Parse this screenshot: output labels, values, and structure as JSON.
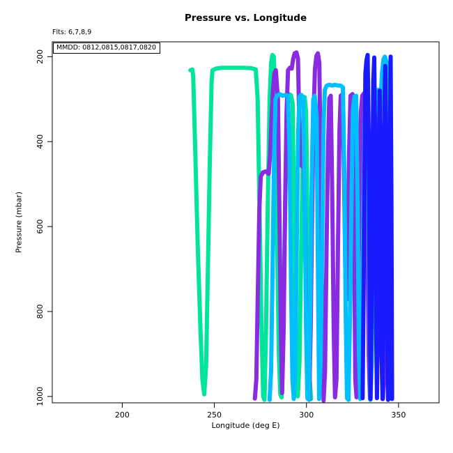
{
  "page": {
    "background": "#ffffff"
  },
  "chart_data": {
    "type": "line",
    "title": "Pressure vs. Longitude",
    "subtitle": "Flts: 6,7,8,9",
    "legend_box_text": "MMDD: 0812,0815,0817,0820",
    "xlabel": "Longitude (deg E)",
    "ylabel": "Pressure (mbar)",
    "xlim": [
      162,
      372
    ],
    "ylim_top": 165,
    "ylim_bottom": 1015,
    "y_axis_reversed": true,
    "x_ticks": [
      200,
      250,
      300,
      350
    ],
    "y_ticks": [
      200,
      400,
      600,
      800,
      1000
    ],
    "grid": false,
    "legend_position": "topleft",
    "axis_color": "#000000",
    "series": [
      {
        "name": "flight-6-mmdd-0812",
        "color": "#00E59B",
        "points": [
          [
            237,
            232
          ],
          [
            238,
            230
          ],
          [
            238.5,
            245
          ],
          [
            239.5,
            400
          ],
          [
            241,
            650
          ],
          [
            242.5,
            850
          ],
          [
            243.5,
            960
          ],
          [
            244.5,
            995
          ],
          [
            245.5,
            930
          ],
          [
            246.5,
            700
          ],
          [
            247.5,
            450
          ],
          [
            248.5,
            260
          ],
          [
            249,
            232
          ],
          [
            251,
            228
          ],
          [
            254,
            226
          ],
          [
            258,
            226
          ],
          [
            262,
            226
          ],
          [
            266,
            226
          ],
          [
            270,
            227
          ],
          [
            272.5,
            230
          ],
          [
            273.5,
            300
          ],
          [
            274.5,
            550
          ],
          [
            275.5,
            820
          ],
          [
            276.5,
            1000
          ],
          [
            277.2,
            1008
          ],
          [
            278,
            850
          ],
          [
            279,
            550
          ],
          [
            280,
            300
          ],
          [
            280.8,
            215
          ],
          [
            281.5,
            196
          ],
          [
            282.3,
            200
          ],
          [
            283,
            300
          ],
          [
            284,
            620
          ],
          [
            285,
            900
          ],
          [
            285.8,
            995
          ],
          [
            286.5,
            1002
          ],
          [
            287.5,
            820
          ],
          [
            288.5,
            520
          ],
          [
            289.5,
            310
          ],
          [
            290.3,
            288
          ],
          [
            291.5,
            290
          ],
          [
            292.5,
            310
          ],
          [
            293.5,
            620
          ],
          [
            294.5,
            930
          ],
          [
            295.3,
            1000
          ],
          [
            296.2,
            920
          ],
          [
            297.2,
            640
          ],
          [
            298.2,
            380
          ],
          [
            299,
            295
          ],
          [
            299.8,
            330
          ],
          [
            300.8,
            650
          ],
          [
            301.8,
            960
          ],
          [
            302.5,
            1006
          ]
        ]
      },
      {
        "name": "flight-7-mmdd-0815",
        "color": "#8A2BE2",
        "points": [
          [
            272,
            1005
          ],
          [
            272.8,
            960
          ],
          [
            273.6,
            760
          ],
          [
            274.4,
            560
          ],
          [
            275.2,
            482
          ],
          [
            276.5,
            472
          ],
          [
            278,
            470
          ],
          [
            279.5,
            476
          ],
          [
            280.3,
            430
          ],
          [
            281,
            350
          ],
          [
            281.8,
            280
          ],
          [
            282.6,
            240
          ],
          [
            283.4,
            232
          ],
          [
            284.5,
            300
          ],
          [
            285.3,
            560
          ],
          [
            286.1,
            840
          ],
          [
            286.8,
            992
          ],
          [
            287.6,
            850
          ],
          [
            288.4,
            560
          ],
          [
            289.2,
            330
          ],
          [
            290,
            232
          ],
          [
            291,
            226
          ],
          [
            292,
            228
          ],
          [
            292.8,
            205
          ],
          [
            293.6,
            192
          ],
          [
            294.6,
            190
          ],
          [
            295.4,
            205
          ],
          [
            296,
            330
          ],
          [
            296.6,
            452
          ],
          [
            297.6,
            458
          ],
          [
            298.6,
            452
          ],
          [
            299.3,
            600
          ],
          [
            300,
            860
          ],
          [
            300.7,
            1002
          ],
          [
            301.5,
            1008
          ],
          [
            302.3,
            840
          ],
          [
            303.1,
            560
          ],
          [
            303.9,
            330
          ],
          [
            304.6,
            230
          ],
          [
            305.4,
            198
          ],
          [
            306.2,
            192
          ],
          [
            307,
            215
          ],
          [
            307.8,
            480
          ],
          [
            308.6,
            820
          ],
          [
            309.3,
            1010
          ],
          [
            310.1,
            940
          ],
          [
            310.9,
            660
          ],
          [
            311.7,
            420
          ],
          [
            312.4,
            298
          ],
          [
            313.2,
            292
          ],
          [
            314,
            520
          ],
          [
            314.8,
            840
          ],
          [
            315.5,
            1002
          ],
          [
            316.3,
            960
          ],
          [
            317.1,
            660
          ],
          [
            317.9,
            380
          ],
          [
            318.6,
            292
          ],
          [
            319.6,
            288
          ],
          [
            320.4,
            480
          ],
          [
            321.1,
            700
          ],
          [
            321.8,
            772
          ],
          [
            322.5,
            640
          ],
          [
            323.2,
            420
          ],
          [
            323.9,
            292
          ],
          [
            325,
            288
          ],
          [
            325.8,
            560
          ],
          [
            326.5,
            960
          ],
          [
            327.2,
            1002
          ],
          [
            328,
            820
          ],
          [
            328.8,
            540
          ],
          [
            329.6,
            330
          ],
          [
            330.3,
            292
          ],
          [
            331.3,
            286
          ],
          [
            332.2,
            292
          ],
          [
            333,
            560
          ],
          [
            333.8,
            900
          ],
          [
            334.5,
            1006
          ],
          [
            335.3,
            920
          ],
          [
            336.1,
            640
          ],
          [
            336.9,
            420
          ],
          [
            337.6,
            295
          ],
          [
            338.5,
            288
          ],
          [
            339.3,
            330
          ],
          [
            340,
            620
          ],
          [
            340.8,
            900
          ],
          [
            341.5,
            1006
          ],
          [
            342.3,
            940
          ],
          [
            343.1,
            680
          ],
          [
            343.9,
            430
          ],
          [
            344.6,
            310
          ]
        ]
      },
      {
        "name": "flight-8-mmdd-0817",
        "color": "#00BFFF",
        "points": [
          [
            280,
            1008
          ],
          [
            280.8,
            940
          ],
          [
            281.6,
            700
          ],
          [
            282.4,
            440
          ],
          [
            283.2,
            300
          ],
          [
            284,
            292
          ],
          [
            285.5,
            288
          ],
          [
            287,
            292
          ],
          [
            288.5,
            290
          ],
          [
            290,
            292
          ],
          [
            290.8,
            420
          ],
          [
            291.6,
            720
          ],
          [
            292.4,
            960
          ],
          [
            293.1,
            1006
          ],
          [
            293.9,
            940
          ],
          [
            294.7,
            660
          ],
          [
            295.5,
            380
          ],
          [
            296.2,
            294
          ],
          [
            297.2,
            290
          ],
          [
            298.2,
            296
          ],
          [
            299,
            520
          ],
          [
            299.8,
            840
          ],
          [
            300.5,
            1004
          ],
          [
            301.3,
            1008
          ],
          [
            302.1,
            780
          ],
          [
            302.9,
            480
          ],
          [
            303.7,
            300
          ],
          [
            304.5,
            292
          ],
          [
            305.5,
            340
          ],
          [
            306.2,
            680
          ],
          [
            306.9,
            1006
          ],
          [
            307.7,
            920
          ],
          [
            308.5,
            640
          ],
          [
            309.3,
            360
          ],
          [
            310,
            278
          ],
          [
            311,
            268
          ],
          [
            312.5,
            266
          ],
          [
            314,
            268
          ],
          [
            315.5,
            266
          ],
          [
            317,
            268
          ],
          [
            318.5,
            268
          ],
          [
            319.8,
            272
          ],
          [
            320.6,
            480
          ],
          [
            321.3,
            800
          ],
          [
            322,
            1004
          ],
          [
            322.8,
            1008
          ],
          [
            323.6,
            820
          ],
          [
            324.4,
            560
          ],
          [
            325.2,
            330
          ],
          [
            326,
            294
          ],
          [
            327,
            292
          ],
          [
            327.8,
            560
          ],
          [
            328.5,
            900
          ],
          [
            329.2,
            1006
          ],
          [
            330,
            940
          ],
          [
            330.8,
            640
          ],
          [
            331.6,
            360
          ],
          [
            332.4,
            296
          ],
          [
            333.2,
            294
          ],
          [
            334,
            680
          ],
          [
            334.7,
            1008
          ],
          [
            335.5,
            920
          ],
          [
            336.3,
            560
          ],
          [
            337.1,
            320
          ],
          [
            337.9,
            280
          ],
          [
            338.9,
            278
          ],
          [
            339.6,
            360
          ],
          [
            340.3,
            300
          ],
          [
            341,
            240
          ],
          [
            341.8,
            206
          ],
          [
            342.6,
            200
          ],
          [
            343.4,
            212
          ],
          [
            344.1,
            560
          ],
          [
            344.8,
            1006
          ]
        ]
      },
      {
        "name": "flight-9-mmdd-0820",
        "color": "#1A1AFF",
        "points": [
          [
            330.5,
            1004
          ],
          [
            331,
            780
          ],
          [
            331.5,
            480
          ],
          [
            332,
            240
          ],
          [
            332.6,
            208
          ],
          [
            333.2,
            196
          ],
          [
            333.8,
            380
          ],
          [
            334.3,
            760
          ],
          [
            334.8,
            1006
          ],
          [
            335.3,
            820
          ],
          [
            335.8,
            520
          ],
          [
            336.3,
            260
          ],
          [
            336.8,
            202
          ],
          [
            337.3,
            420
          ],
          [
            337.8,
            820
          ],
          [
            338.3,
            1004
          ],
          [
            338.8,
            760
          ],
          [
            339.3,
            420
          ],
          [
            339.8,
            280
          ],
          [
            340.3,
            520
          ],
          [
            340.8,
            900
          ],
          [
            341.3,
            1006
          ],
          [
            341.8,
            700
          ],
          [
            342.3,
            330
          ],
          [
            342.8,
            222
          ],
          [
            343.3,
            480
          ],
          [
            343.8,
            860
          ],
          [
            344.3,
            1008
          ],
          [
            344.8,
            720
          ],
          [
            345.3,
            380
          ],
          [
            345.7,
            200
          ],
          [
            346.1,
            520
          ],
          [
            346.5,
            1006
          ]
        ]
      }
    ]
  }
}
